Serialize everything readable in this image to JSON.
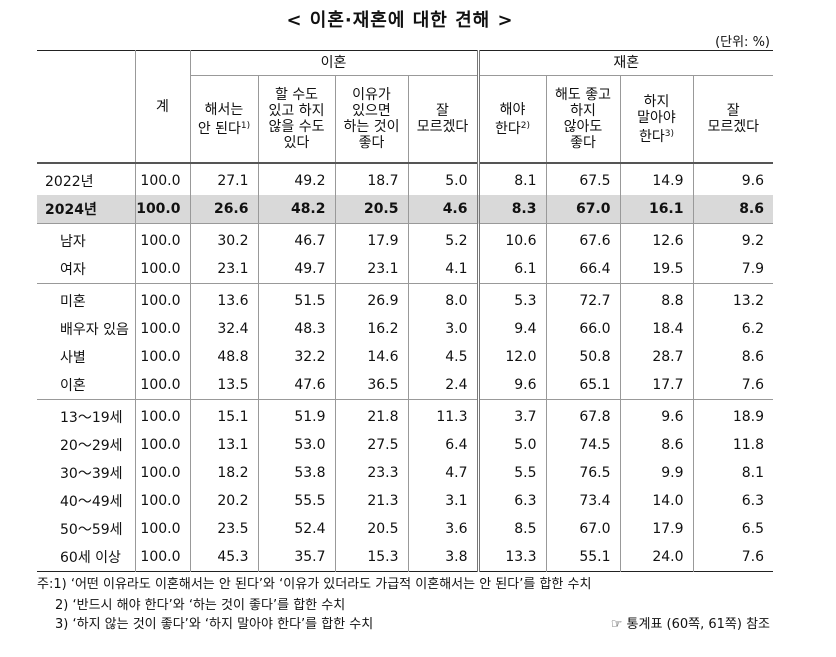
{
  "header": {
    "title": "< 이혼·재혼에 대한 견해 >",
    "unit": "(단위: %)"
  },
  "table": {
    "total_header": "계",
    "groups": [
      {
        "label": "이혼",
        "columns": [
          {
            "text": "해서는\n안 된다",
            "note": "1)"
          },
          {
            "text": "할 수도\n있고 하지\n않을 수도\n있다"
          },
          {
            "text": "이유가\n있으면\n하는 것이\n좋다"
          },
          {
            "text": "잘\n모르겠다"
          }
        ]
      },
      {
        "label": "재혼",
        "columns": [
          {
            "text": "해야\n한다",
            "note": "2)"
          },
          {
            "text": "해도 좋고\n하지\n않아도\n좋다"
          },
          {
            "text": "하지\n말아야\n한다",
            "note": "3)"
          },
          {
            "text": "잘\n모르겠다"
          }
        ]
      }
    ],
    "row_groups": [
      {
        "rows": [
          {
            "label": "2022년",
            "values": [
              "100.0",
              "27.1",
              "49.2",
              "18.7",
              "5.0",
              "8.1",
              "67.5",
              "14.9",
              "9.6"
            ]
          },
          {
            "label": "2024년",
            "highlight": true,
            "values": [
              "100.0",
              "26.6",
              "48.2",
              "20.5",
              "4.6",
              "8.3",
              "67.0",
              "16.1",
              "8.6"
            ]
          }
        ]
      },
      {
        "rows": [
          {
            "label": "남자",
            "values": [
              "100.0",
              "30.2",
              "46.7",
              "17.9",
              "5.2",
              "10.6",
              "67.6",
              "12.6",
              "9.2"
            ]
          },
          {
            "label": "여자",
            "values": [
              "100.0",
              "23.1",
              "49.7",
              "23.1",
              "4.1",
              "6.1",
              "66.4",
              "19.5",
              "7.9"
            ]
          }
        ]
      },
      {
        "rows": [
          {
            "label": "미혼",
            "values": [
              "100.0",
              "13.6",
              "51.5",
              "26.9",
              "8.0",
              "5.3",
              "72.7",
              "8.8",
              "13.2"
            ]
          },
          {
            "label": "배우자 있음",
            "values": [
              "100.0",
              "32.4",
              "48.3",
              "16.2",
              "3.0",
              "9.4",
              "66.0",
              "18.4",
              "6.2"
            ]
          },
          {
            "label": "사별",
            "values": [
              "100.0",
              "48.8",
              "32.2",
              "14.6",
              "4.5",
              "12.0",
              "50.8",
              "28.7",
              "8.6"
            ]
          },
          {
            "label": "이혼",
            "values": [
              "100.0",
              "13.5",
              "47.6",
              "36.5",
              "2.4",
              "9.6",
              "65.1",
              "17.7",
              "7.6"
            ]
          }
        ]
      },
      {
        "rows": [
          {
            "label": "13～19세",
            "values": [
              "100.0",
              "15.1",
              "51.9",
              "21.8",
              "11.3",
              "3.7",
              "67.8",
              "9.6",
              "18.9"
            ]
          },
          {
            "label": "20～29세",
            "values": [
              "100.0",
              "13.1",
              "53.0",
              "27.5",
              "6.4",
              "5.0",
              "74.5",
              "8.6",
              "11.8"
            ]
          },
          {
            "label": "30～39세",
            "values": [
              "100.0",
              "18.2",
              "53.8",
              "23.3",
              "4.7",
              "5.5",
              "76.5",
              "9.9",
              "8.1"
            ]
          },
          {
            "label": "40～49세",
            "values": [
              "100.0",
              "20.2",
              "55.5",
              "21.3",
              "3.1",
              "6.3",
              "73.4",
              "14.0",
              "6.3"
            ]
          },
          {
            "label": "50～59세",
            "values": [
              "100.0",
              "23.5",
              "52.4",
              "20.5",
              "3.6",
              "8.5",
              "67.0",
              "17.9",
              "6.5"
            ]
          },
          {
            "label": "60세 이상",
            "values": [
              "100.0",
              "45.3",
              "35.7",
              "15.3",
              "3.8",
              "13.3",
              "55.1",
              "24.0",
              "7.6"
            ]
          }
        ]
      }
    ]
  },
  "footnotes": [
    "주:1) ‘어떤 이유라도 이혼해서는 안 된다’와 ‘이유가 있더라도 가급적 이혼해서는 안 된다’를 합한 수치",
    "2) ‘반드시 해야 한다’와 ‘하는 것이 좋다’를 합한 수치",
    "3) ‘하지 않는 것이 좋다’와 ‘하지 말아야 한다’를 합한 수치"
  ],
  "source": "☞ 통계표 (60쪽, 61쪽) 참조"
}
